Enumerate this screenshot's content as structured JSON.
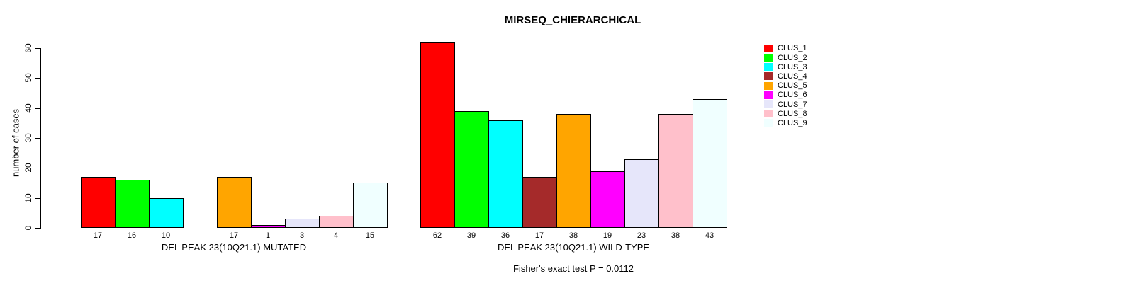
{
  "title": "MIRSEQ_CHIERARCHICAL",
  "footer": "Fisher's exact test P = 0.0112",
  "chart_data": [
    {
      "type": "bar",
      "title": "MIRSEQ_CHIERARCHICAL",
      "xlabel": "DEL PEAK 23(10Q21.1) MUTATED",
      "ylabel": "number of cases",
      "ylim": [
        0,
        60
      ],
      "yticks": [
        0,
        10,
        20,
        30,
        40,
        50,
        60
      ],
      "grid": false,
      "categories": [
        "CLUS_1",
        "CLUS_2",
        "CLUS_3",
        "CLUS_4",
        "CLUS_5",
        "CLUS_6",
        "CLUS_7",
        "CLUS_8",
        "CLUS_9"
      ],
      "values": [
        17,
        16,
        10,
        0,
        17,
        1,
        3,
        4,
        15
      ],
      "bar_labels": [
        "17",
        "16",
        "10",
        "",
        "17",
        "1",
        "3",
        "4",
        "15"
      ]
    },
    {
      "type": "bar",
      "xlabel": "DEL PEAK 23(10Q21.1) WILD-TYPE",
      "ylim": [
        0,
        60
      ],
      "grid": false,
      "categories": [
        "CLUS_1",
        "CLUS_2",
        "CLUS_3",
        "CLUS_4",
        "CLUS_5",
        "CLUS_6",
        "CLUS_7",
        "CLUS_8",
        "CLUS_9"
      ],
      "values": [
        62,
        39,
        36,
        17,
        38,
        19,
        23,
        38,
        43
      ],
      "bar_labels": [
        "62",
        "39",
        "36",
        "17",
        "38",
        "19",
        "23",
        "38",
        "43"
      ]
    }
  ],
  "legend": {
    "position": "right",
    "entries": [
      {
        "label": "CLUS_1",
        "color": "#FF0000"
      },
      {
        "label": "CLUS_2",
        "color": "#00FF00"
      },
      {
        "label": "CLUS_3",
        "color": "#00FFFF"
      },
      {
        "label": "CLUS_4",
        "color": "#A52A2A"
      },
      {
        "label": "CLUS_5",
        "color": "#FFA500"
      },
      {
        "label": "CLUS_6",
        "color": "#FF00FF"
      },
      {
        "label": "CLUS_7",
        "color": "#E6E6FA"
      },
      {
        "label": "CLUS_8",
        "color": "#FFC0CB"
      },
      {
        "label": "CLUS_9",
        "color": "#F0FFFF"
      }
    ]
  },
  "colors": {
    "bar_border": "#000000",
    "axis": "#000000",
    "text": "#000000",
    "background": "#FFFFFF"
  }
}
